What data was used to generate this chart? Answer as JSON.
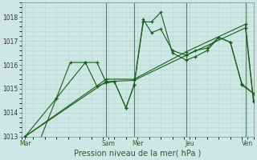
{
  "xlabel": "Pression niveau de la mer( hPa )",
  "bg_color": "#cde8e4",
  "grid_color": "#b8d8d0",
  "vline_color": "#5a7a6a",
  "line_color": "#1a5c1a",
  "ylim": [
    1013.0,
    1018.6
  ],
  "yticks": [
    1013,
    1014,
    1015,
    1016,
    1017,
    1018
  ],
  "xlim": [
    0,
    20
  ],
  "day_labels": [
    "Mar",
    "Sam",
    "Mer",
    "Jeu",
    "Ven"
  ],
  "day_positions": [
    0.3,
    7.5,
    10.0,
    14.5,
    19.5
  ],
  "vline_positions": [
    7.3,
    9.7,
    14.2,
    19.3
  ],
  "series": [
    {
      "x": [
        0.3,
        1.5,
        3.0,
        4.2,
        5.5,
        6.5,
        7.3,
        8.0,
        9.0,
        9.7,
        10.5,
        11.2,
        12.0,
        13.0,
        14.2,
        15.0,
        16.0,
        17.0,
        18.0,
        19.0,
        20.0
      ],
      "y": [
        1013.0,
        1012.75,
        1014.6,
        1016.1,
        1016.1,
        1016.1,
        1015.25,
        1015.3,
        1014.2,
        1015.15,
        1017.8,
        1017.8,
        1018.2,
        1016.5,
        1016.2,
        1016.35,
        1016.6,
        1017.15,
        1016.95,
        1015.15,
        1014.8
      ]
    },
    {
      "x": [
        0.3,
        3.0,
        5.5,
        6.5,
        7.3,
        8.0,
        9.0,
        9.7,
        10.5,
        11.2,
        12.0,
        13.0,
        14.2,
        15.0,
        16.0,
        17.0,
        18.0,
        19.0,
        20.0
      ],
      "y": [
        1013.0,
        1014.6,
        1016.1,
        1015.1,
        1015.25,
        1015.3,
        1014.2,
        1015.15,
        1017.9,
        1017.35,
        1017.5,
        1016.6,
        1016.4,
        1016.6,
        1016.7,
        1017.15,
        1016.95,
        1015.2,
        1014.8
      ]
    },
    {
      "x": [
        0.3,
        7.3,
        9.7,
        14.2,
        19.3,
        20.0
      ],
      "y": [
        1013.0,
        1015.3,
        1015.35,
        1016.4,
        1017.55,
        1014.45
      ]
    },
    {
      "x": [
        0.3,
        7.3,
        9.7,
        14.2,
        19.3,
        20.0
      ],
      "y": [
        1013.0,
        1015.4,
        1015.4,
        1016.55,
        1017.7,
        1014.5
      ]
    }
  ]
}
